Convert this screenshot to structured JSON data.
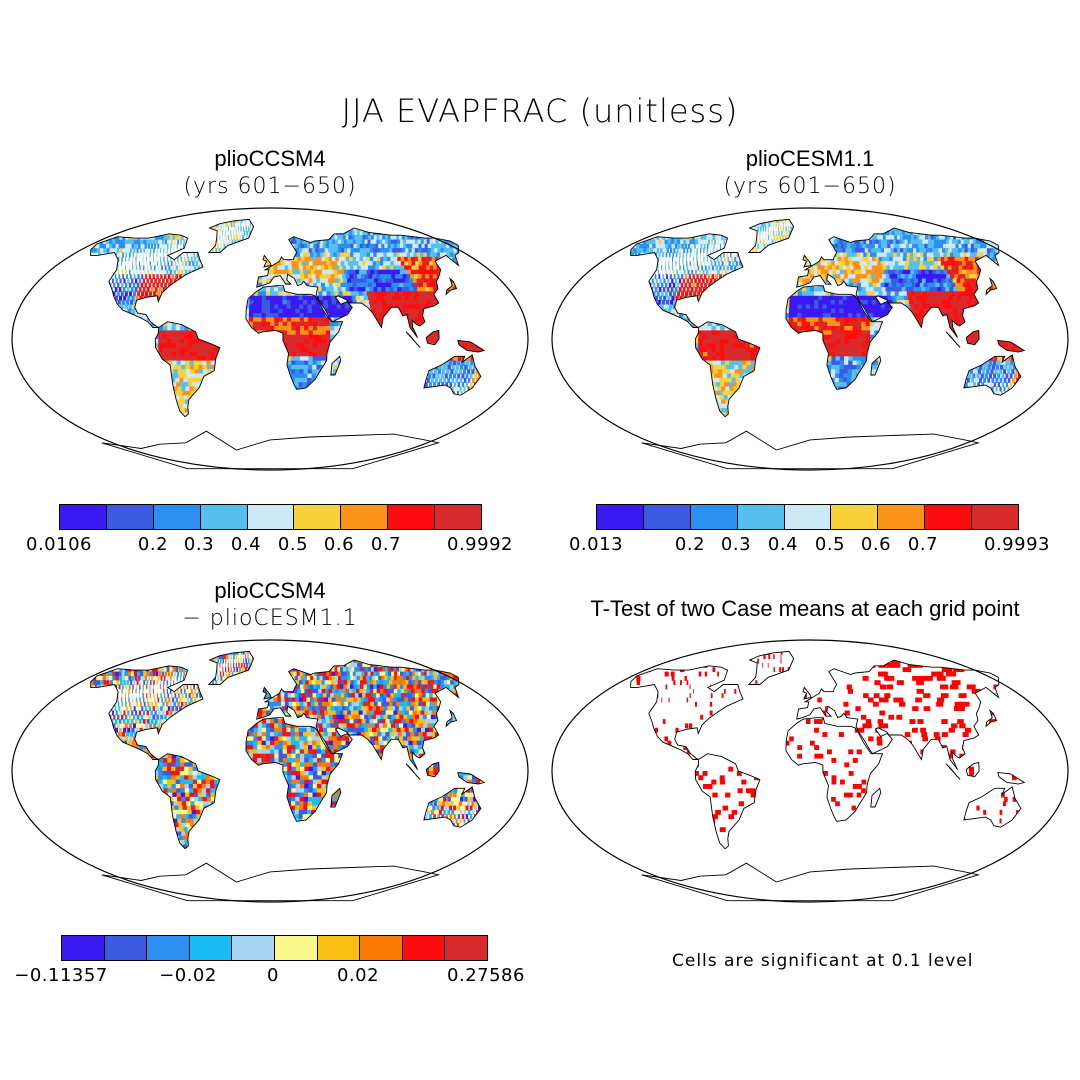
{
  "title": "JJA EVAPFRAC (unitless)",
  "panels": {
    "top_left": {
      "title": "plioCCSM4",
      "subtitle": "(yrs 601−650)"
    },
    "top_right": {
      "title": "plioCESM1.1",
      "subtitle": "(yrs 601−650)"
    },
    "bottom_left": {
      "title": "plioCCSM4",
      "subtitle": "− plioCESM1.1"
    },
    "bottom_right": {
      "title": "T-Test of two Case means at each grid point",
      "note": "Cells are significant at 0.1 level"
    }
  },
  "colorbars": {
    "top_left": {
      "colors": [
        "#3b19f2",
        "#3b5ce0",
        "#2a8ff0",
        "#55bff0",
        "#cde8f6",
        "#f8d238",
        "#fb931a",
        "#fd0d0d",
        "#d82a2a"
      ],
      "ticks": [
        "0.0106",
        "0.2",
        "0.3",
        "0.4",
        "0.5",
        "0.6",
        "0.7",
        "0.9992"
      ]
    },
    "top_right": {
      "colors": [
        "#3b19f2",
        "#3b5ce0",
        "#2a8ff0",
        "#55bff0",
        "#cde8f6",
        "#f8d238",
        "#fb931a",
        "#fd0d0d",
        "#d82a2a"
      ],
      "ticks": [
        "0.013",
        "0.2",
        "0.3",
        "0.4",
        "0.5",
        "0.6",
        "0.7",
        "0.9993"
      ]
    },
    "bottom_left": {
      "colors": [
        "#3b19f2",
        "#3b5ce0",
        "#2a8ff0",
        "#1abcf5",
        "#a6d3ef",
        "#fbf98c",
        "#fbbe15",
        "#fb7b06",
        "#fd0d0d",
        "#d82a2a"
      ],
      "ticks": [
        "−0.11357",
        "−0.02",
        "0",
        "0.02",
        "0.27586"
      ]
    }
  },
  "colors": {
    "land_outline": "#000000",
    "significant": "#ff0000"
  }
}
